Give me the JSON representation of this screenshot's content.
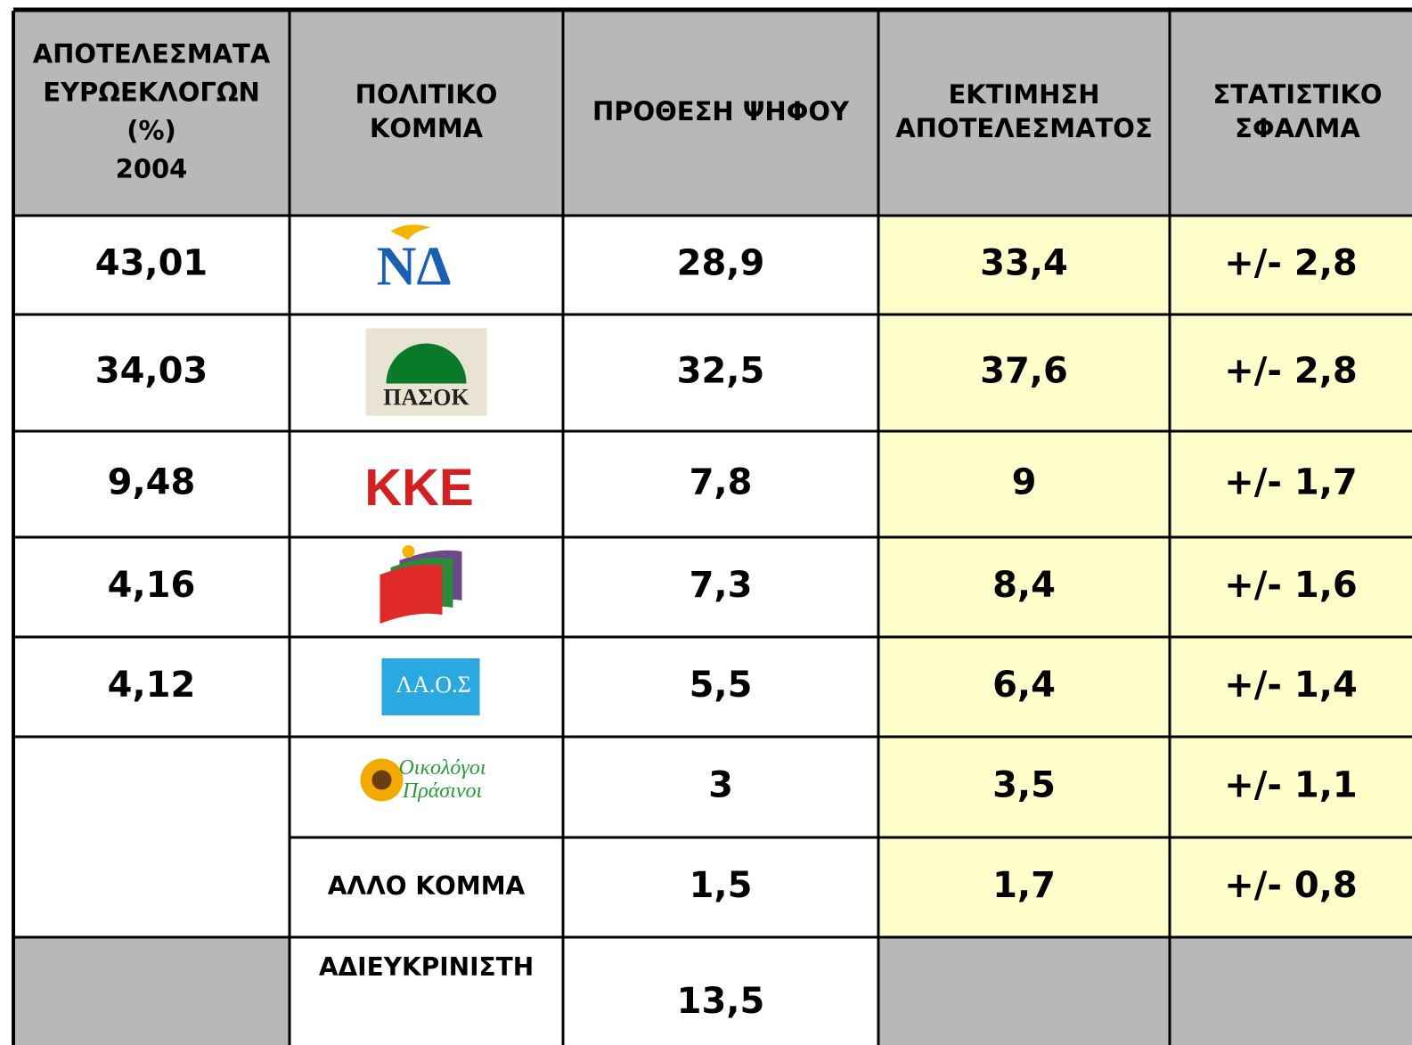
{
  "table": {
    "header": [
      [
        "ΑΠΟΤΕΛΕΣΜΑΤΑ",
        "ΕΥΡΩΕΚΛΟΓΩΝ",
        "(%)",
        "2004"
      ],
      [
        "ΠΟΛΙΤΙΚΟ",
        "ΚΟΜΜΑ"
      ],
      [
        "ΠΡΟΘΕΣΗ ΨΗΦΟΥ"
      ],
      [
        "ΕΚΤΙΜΗΣΗ",
        "ΑΠΟΤΕΛΕΣΜΑΤΟΣ"
      ],
      [
        "ΣΤΑΤΙΣΤΙΚΟ",
        "ΣΦΑΛΜΑ"
      ]
    ],
    "rows": [
      {
        "result": "43,01",
        "logo": [
          "ΝΔ"
        ],
        "intention": "28,9",
        "estimate": "33,4",
        "error": "+/- 2,8"
      },
      {
        "result": "34,03",
        "logo": [
          "ΠΑΣΟΚ"
        ],
        "intention": "32,5",
        "estimate": "37,6",
        "error": "+/- 2,8"
      },
      {
        "result": "9,48",
        "logo": [
          "ΚΚΕ"
        ],
        "intention": "7,8",
        "estimate": "9",
        "error": "+/- 1,7"
      },
      {
        "result": "4,16",
        "intention": "7,3",
        "estimate": "8,4",
        "error": "+/- 1,6"
      },
      {
        "result": "4,12",
        "logo": [
          "ΛΑ.Ο.Σ"
        ],
        "intention": "5,5",
        "estimate": "6,4",
        "error": "+/- 1,4"
      },
      {
        "logo": [
          "Οικολόγοι",
          "Πράσινοι"
        ],
        "intention": "3",
        "estimate": "3,5",
        "error": "+/- 1,1"
      },
      {
        "party": "ΑΛΛΟ ΚΟΜΜΑ",
        "intention": "1,5",
        "estimate": "1,7",
        "error": "+/- 0,8"
      },
      {
        "party": "ΑΔΙΕΥΚΡΙΝΙΣΤΗ",
        "intention": "13,5"
      }
    ]
  }
}
